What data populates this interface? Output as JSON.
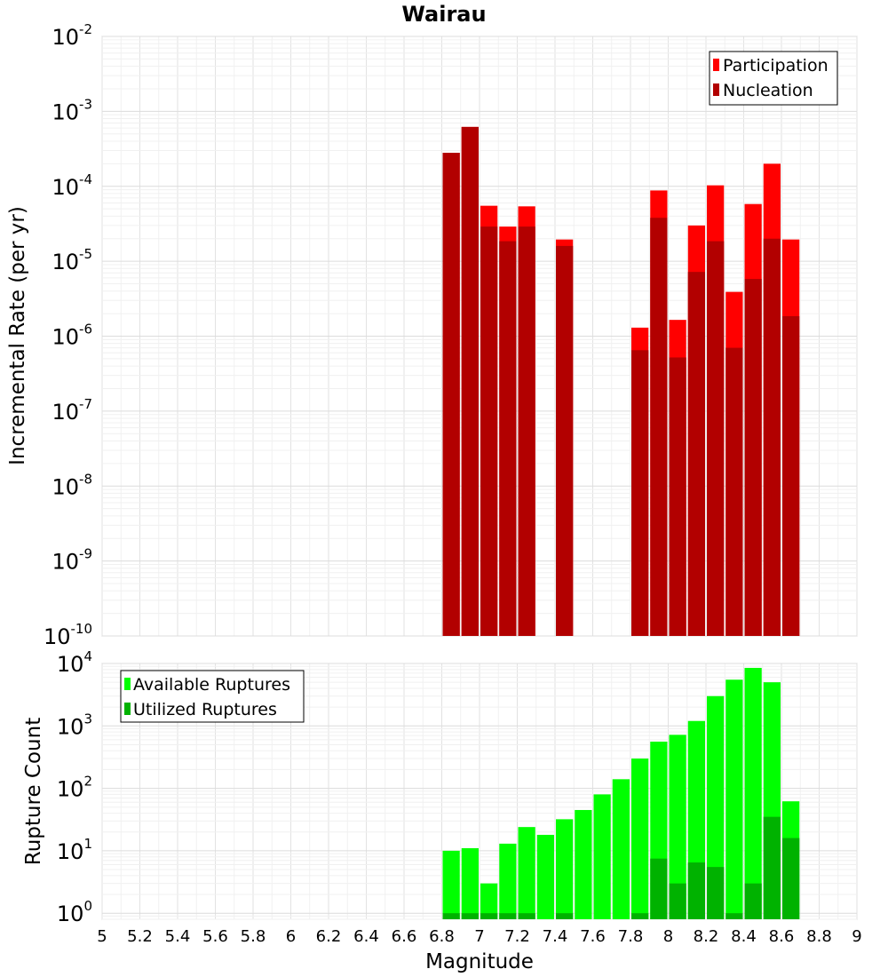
{
  "chart_data": [
    {
      "type": "bar",
      "title": "Wairau",
      "ylabel": "Incremental Rate (per yr)",
      "xlabel": "",
      "xlim": [
        5,
        9
      ],
      "ylim": [
        1e-10,
        0.01
      ],
      "y_scale": "log",
      "grid": true,
      "legend_position": "top-right",
      "bar_width": 0.1,
      "x": [
        6.85,
        6.95,
        7.05,
        7.15,
        7.25,
        7.45,
        7.85,
        7.95,
        8.05,
        8.15,
        8.25,
        8.35,
        8.45,
        8.55,
        8.65
      ],
      "series": [
        {
          "name": "Participation",
          "color": "#ff0000",
          "values": [
            0.00028,
            0.00062,
            5.5e-05,
            2.9e-05,
            5.4e-05,
            1.95e-05,
            1.3e-06,
            8.8e-05,
            1.65e-06,
            3e-05,
            0.000103,
            3.9e-06,
            5.8e-05,
            0.0002,
            1.95e-05
          ]
        },
        {
          "name": "Nucleation",
          "color": "#b20000",
          "values": [
            0.00028,
            0.00062,
            2.9e-05,
            1.85e-05,
            2.9e-05,
            1.6e-05,
            6.5e-07,
            3.8e-05,
            5.2e-07,
            7.2e-06,
            1.85e-05,
            7e-07,
            5.8e-06,
            2e-05,
            1.85e-06
          ]
        }
      ],
      "y_ticks": [
        "10^-10",
        "10^-9",
        "10^-8",
        "10^-7",
        "10^-6",
        "10^-5",
        "10^-4",
        "10^-3",
        "10^-2"
      ]
    },
    {
      "type": "bar",
      "title": "",
      "ylabel": "Rupture Count",
      "xlabel": "Magnitude",
      "xlim": [
        5,
        9
      ],
      "ylim": [
        0.8,
        10000
      ],
      "y_scale": "log",
      "grid": true,
      "legend_position": "top-left",
      "bar_width": 0.1,
      "x": [
        6.85,
        6.95,
        7.05,
        7.15,
        7.25,
        7.35,
        7.45,
        7.55,
        7.65,
        7.75,
        7.85,
        7.95,
        8.05,
        8.15,
        8.25,
        8.35,
        8.45,
        8.55,
        8.65
      ],
      "series": [
        {
          "name": "Available Ruptures",
          "color": "#00ff00",
          "values": [
            10,
            11,
            3,
            13,
            24,
            18,
            32,
            45,
            80,
            140,
            300,
            560,
            720,
            1200,
            3000,
            5500,
            8500,
            5000,
            62
          ]
        },
        {
          "name": "Utilized Ruptures",
          "color": "#00b200",
          "values": [
            1,
            1,
            1,
            1,
            1,
            0,
            1,
            0,
            0,
            0,
            1,
            7.5,
            3,
            6.5,
            5.5,
            1,
            3,
            35,
            16
          ]
        }
      ],
      "y_ticks": [
        "10^0",
        "10^1",
        "10^2",
        "10^3",
        "10^4"
      ],
      "x_ticks": [
        "5",
        "5.2",
        "5.4",
        "5.6",
        "5.8",
        "6",
        "6.2",
        "6.4",
        "6.6",
        "6.8",
        "7",
        "7.2",
        "7.4",
        "7.6",
        "7.8",
        "8",
        "8.2",
        "8.4",
        "8.6",
        "8.8",
        "9"
      ]
    }
  ]
}
